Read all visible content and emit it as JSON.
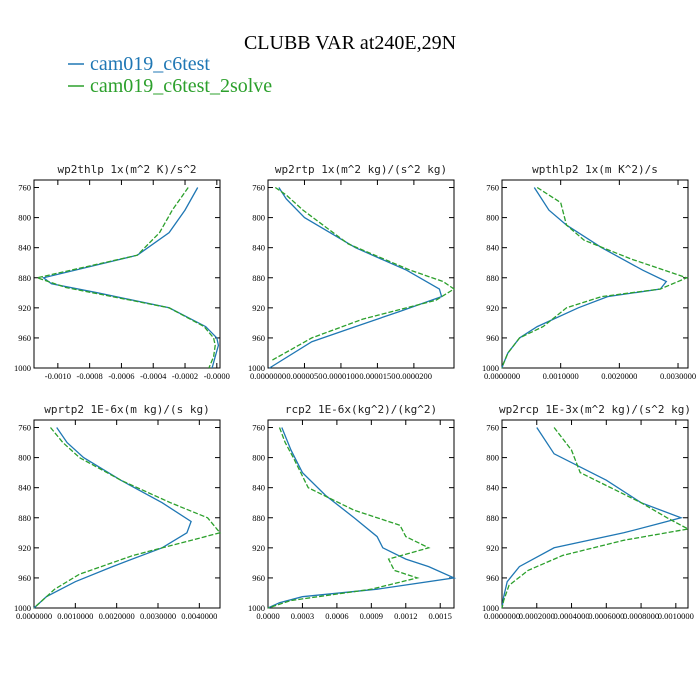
{
  "title": "CLUBB VAR at240E,29N",
  "legend": [
    {
      "name": "cam019_c6test",
      "color": "#1f77b4"
    },
    {
      "name": "cam019_c6test_2solve",
      "color": "#2ca02c"
    }
  ],
  "chart_data": [
    {
      "type": "line",
      "title": "wp2thlp  1x(m^2 K)/s^2",
      "ylim": [
        1000,
        750
      ],
      "xlim": [
        -0.00115,
        2e-05
      ],
      "yticks": [
        "760",
        "800",
        "840",
        "880",
        "920",
        "960",
        "1000"
      ],
      "xticks": [
        "-0.0010",
        "-0.0008",
        "-0.0006",
        "-0.0004",
        "-0.0002",
        "-0.0000"
      ],
      "xtick_values": [
        -0.001,
        -0.0008,
        -0.0006,
        -0.0004,
        -0.0002,
        0.0
      ],
      "series": [
        {
          "name": "cam019_c6test",
          "y": [
            760,
            790,
            820,
            850,
            880,
            888,
            900,
            920,
            945,
            960,
            970,
            985,
            1000
          ],
          "x": [
            -0.00012,
            -0.0002,
            -0.0003,
            -0.0005,
            -0.00109,
            -0.00104,
            -0.00075,
            -0.0003,
            -7e-05,
            0.0,
            1e-05,
            -1e-05,
            -3e-05
          ]
        },
        {
          "name": "cam019_c6test_2solve",
          "y": [
            760,
            790,
            820,
            850,
            880,
            893,
            900,
            920,
            945,
            960,
            970,
            985,
            1000
          ],
          "x": [
            -0.00018,
            -0.00028,
            -0.00036,
            -0.0005,
            -0.00113,
            -0.00095,
            -0.00078,
            -0.0003,
            -8e-05,
            -2e-05,
            -1e-05,
            -2e-05,
            -5e-05
          ]
        }
      ]
    },
    {
      "type": "line",
      "title": "wp2rtp  1x(m^2 kg)/(s^2 kg)",
      "ylim": [
        1000,
        750
      ],
      "xlim": [
        0.0,
        2.55e-05
      ],
      "yticks": [
        "760",
        "800",
        "840",
        "880",
        "920",
        "960",
        "1000"
      ],
      "xticks": [
        "0.0000000",
        "0.0000050",
        "0.0000100",
        "0.0000150",
        "0.0000200"
      ],
      "xtick_values": [
        0.0,
        5e-06,
        1e-05,
        1.5e-05,
        2e-05
      ],
      "series": [
        {
          "name": "cam019_c6test",
          "y": [
            760,
            775,
            800,
            840,
            870,
            895,
            905,
            925,
            945,
            965,
            1000
          ],
          "x": [
            1.5e-06,
            2.5e-06,
            5e-06,
            1.2e-05,
            1.9e-05,
            2.35e-05,
            2.38e-05,
            1.8e-05,
            1.2e-05,
            6e-06,
            2e-07
          ]
        },
        {
          "name": "cam019_c6test_2solve",
          "y": [
            760,
            770,
            790,
            835,
            870,
            885,
            895,
            910,
            935,
            960,
            990
          ],
          "x": [
            1e-06,
            2.5e-06,
            4.8e-06,
            1.1e-05,
            1.95e-05,
            2.4e-05,
            2.55e-05,
            2.3e-05,
            1.3e-05,
            6e-06,
            5e-07
          ]
        }
      ]
    },
    {
      "type": "line",
      "title": "wpthlp2  1x(m K^2)/s",
      "ylim": [
        1000,
        750
      ],
      "xlim": [
        0.0,
        0.00317
      ],
      "yticks": [
        "760",
        "800",
        "840",
        "880",
        "920",
        "960",
        "1000"
      ],
      "xticks": [
        "0.0000000",
        "0.0010000",
        "0.0020000",
        "0.0030000"
      ],
      "xtick_values": [
        0.0,
        0.001,
        0.002,
        0.003
      ],
      "series": [
        {
          "name": "cam019_c6test",
          "y": [
            760,
            790,
            810,
            840,
            870,
            885,
            895,
            905,
            920,
            945,
            960,
            980,
            995,
            1000
          ],
          "x": [
            0.00055,
            0.0008,
            0.0011,
            0.0017,
            0.0024,
            0.0028,
            0.0027,
            0.0018,
            0.0013,
            0.0006,
            0.0003,
            0.0001,
            2e-05,
            0.0
          ]
        },
        {
          "name": "cam019_c6test_2solve",
          "y": [
            760,
            780,
            810,
            830,
            855,
            880,
            895,
            905,
            920,
            945,
            960,
            980,
            995,
            1000
          ],
          "x": [
            0.0006,
            0.001,
            0.0011,
            0.0014,
            0.0022,
            0.00315,
            0.0027,
            0.0017,
            0.0011,
            0.0007,
            0.0003,
            0.0001,
            2e-05,
            0.0
          ]
        }
      ]
    },
    {
      "type": "line",
      "title": "wprtp2  1E-6x(m kg)/(s kg)",
      "ylim": [
        1000,
        750
      ],
      "xlim": [
        0.0,
        0.0045
      ],
      "yticks": [
        "760",
        "800",
        "840",
        "880",
        "920",
        "960",
        "1000"
      ],
      "xticks": [
        "0.0000000",
        "0.0010000",
        "0.0020000",
        "0.0030000",
        "0.0040000"
      ],
      "xtick_values": [
        0.0,
        0.001,
        0.002,
        0.003,
        0.004
      ],
      "series": [
        {
          "name": "cam019_c6test",
          "y": [
            760,
            780,
            800,
            830,
            860,
            885,
            900,
            920,
            945,
            965,
            985,
            1000
          ],
          "x": [
            0.00055,
            0.0008,
            0.0012,
            0.0021,
            0.0031,
            0.0038,
            0.0037,
            0.0031,
            0.0019,
            0.001,
            0.0003,
            0.0
          ]
        },
        {
          "name": "cam019_c6test_2solve",
          "y": [
            760,
            780,
            800,
            830,
            860,
            880,
            900,
            930,
            955,
            975,
            990,
            1000
          ],
          "x": [
            0.0004,
            0.0007,
            0.0011,
            0.0021,
            0.0033,
            0.0042,
            0.0045,
            0.0024,
            0.0011,
            0.0005,
            0.0002,
            0.0
          ]
        }
      ]
    },
    {
      "type": "line",
      "title": "rcp2  1E-6x(kg^2)/(kg^2)",
      "ylim": [
        1000,
        750
      ],
      "xlim": [
        0.0,
        0.00162
      ],
      "yticks": [
        "760",
        "800",
        "840",
        "880",
        "920",
        "960",
        "1000"
      ],
      "xticks": [
        "0.0000",
        "0.0003",
        "0.0006",
        "0.0009",
        "0.0012",
        "0.0015"
      ],
      "xtick_values": [
        0.0,
        0.0003,
        0.0006,
        0.0009,
        0.0012,
        0.0015
      ],
      "series": [
        {
          "name": "cam019_c6test",
          "y": [
            760,
            790,
            820,
            850,
            880,
            905,
            920,
            935,
            945,
            960,
            975,
            985,
            993,
            1000
          ],
          "x": [
            0.00012,
            0.0002,
            0.0003,
            0.0005,
            0.00075,
            0.00095,
            0.001,
            0.0012,
            0.0014,
            0.00162,
            0.00095,
            0.0003,
            0.0001,
            0.0
          ]
        },
        {
          "name": "cam019_c6test_2solve",
          "y": [
            760,
            780,
            800,
            840,
            870,
            890,
            905,
            920,
            935,
            950,
            960,
            975,
            990,
            1000
          ],
          "x": [
            0.0001,
            0.00015,
            0.00022,
            0.00035,
            0.00075,
            0.00115,
            0.0012,
            0.0014,
            0.00105,
            0.0011,
            0.0013,
            0.0009,
            0.0002,
            0.0
          ]
        }
      ]
    },
    {
      "type": "line",
      "title": "wp2rcp  1E-3x(m^2 kg)/(s^2 kg)",
      "ylim": [
        1000,
        750
      ],
      "xlim": [
        0.0,
        0.00107
      ],
      "yticks": [
        "760",
        "800",
        "840",
        "880",
        "920",
        "960",
        "1000"
      ],
      "xticks": [
        "0.0000000",
        "0.0002000",
        "0.0004000",
        "0.0006000",
        "0.0008000",
        "0.0010000"
      ],
      "xtick_values": [
        0.0,
        0.0002,
        0.0004,
        0.0006,
        0.0008,
        0.001
      ],
      "series": [
        {
          "name": "cam019_c6test",
          "y": [
            760,
            795,
            830,
            860,
            880,
            888,
            900,
            920,
            945,
            965,
            985,
            1000
          ],
          "x": [
            0.0002,
            0.0003,
            0.0006,
            0.0008,
            0.00103,
            0.0009,
            0.0007,
            0.0003,
            0.0001,
            3e-05,
            1e-05,
            0.0
          ]
        },
        {
          "name": "cam019_c6test_2solve",
          "y": [
            760,
            790,
            820,
            860,
            880,
            895,
            910,
            930,
            950,
            970,
            990,
            1000
          ],
          "x": [
            0.0003,
            0.0004,
            0.00045,
            0.0008,
            0.00095,
            0.00107,
            0.0007,
            0.00035,
            0.00015,
            4e-05,
            1e-05,
            0.0
          ]
        }
      ]
    }
  ]
}
